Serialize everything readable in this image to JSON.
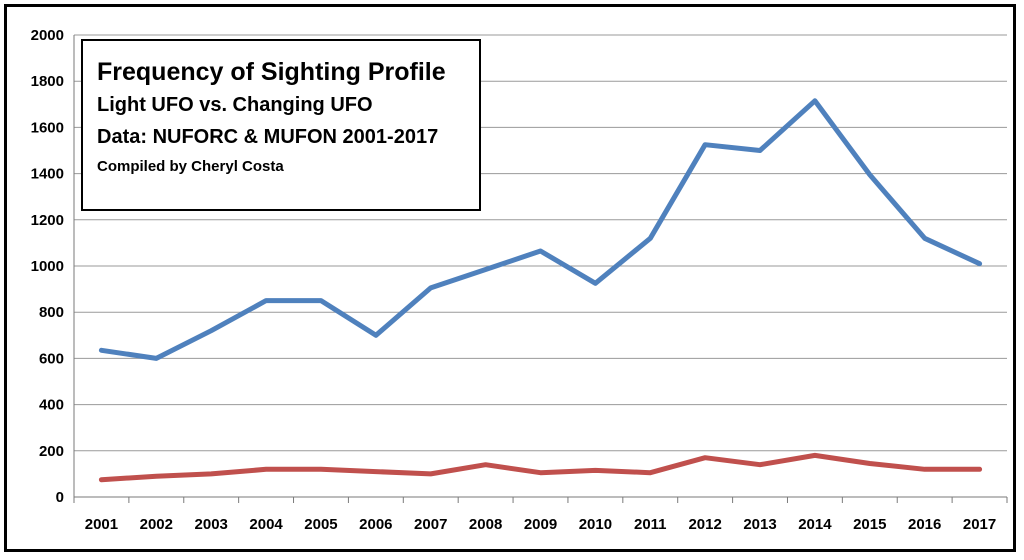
{
  "chart_data": {
    "type": "line",
    "title": "Frequency of Sighting Profile",
    "subtitle_lines": [
      "Light UFO vs. Changing UFO",
      "Data: NUFORC & MUFON 2001-2017",
      "Compiled by Cheryl Costa"
    ],
    "categories": [
      "2001",
      "2002",
      "2003",
      "2004",
      "2005",
      "2006",
      "2007",
      "2008",
      "2009",
      "2010",
      "2011",
      "2012",
      "2013",
      "2014",
      "2015",
      "2016",
      "2017"
    ],
    "series": [
      {
        "values": [
          635,
          600,
          720,
          850,
          850,
          700,
          905,
          985,
          1065,
          925,
          1120,
          1525,
          1500,
          1715,
          1395,
          1120,
          1010
        ],
        "color": "#4f81bd"
      },
      {
        "values": [
          75,
          90,
          100,
          120,
          120,
          110,
          100,
          140,
          105,
          115,
          105,
          170,
          140,
          180,
          145,
          120,
          120
        ],
        "color": "#c0504d"
      }
    ],
    "ylim": [
      0,
      2000
    ],
    "yticks": [
      0,
      200,
      400,
      600,
      800,
      1000,
      1200,
      1400,
      1600,
      1800,
      2000
    ],
    "grid": true,
    "legend": "none"
  }
}
